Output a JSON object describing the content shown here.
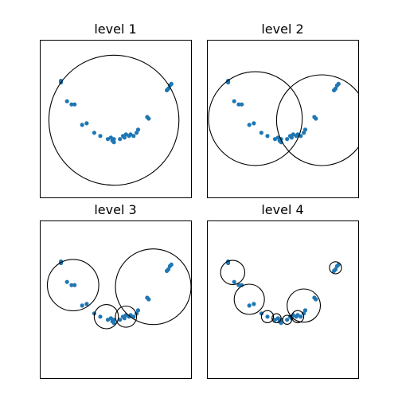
{
  "chart_data": [
    {
      "type": "scatter",
      "title": "level 1",
      "xlim": [
        0,
        100
      ],
      "ylim": [
        0,
        100
      ],
      "grid": false,
      "points": [
        [
          14,
          73
        ],
        [
          14,
          74
        ],
        [
          18,
          61
        ],
        [
          21,
          59
        ],
        [
          23,
          59
        ],
        [
          28,
          46
        ],
        [
          31,
          47
        ],
        [
          36,
          41
        ],
        [
          40,
          39
        ],
        [
          45,
          37
        ],
        [
          47,
          38
        ],
        [
          48,
          36
        ],
        [
          49,
          37
        ],
        [
          49,
          35
        ],
        [
          53,
          37
        ],
        [
          55,
          39
        ],
        [
          56,
          38
        ],
        [
          57,
          40
        ],
        [
          59,
          39
        ],
        [
          60,
          40
        ],
        [
          62,
          39
        ],
        [
          64,
          41
        ],
        [
          65,
          43
        ],
        [
          71,
          51
        ],
        [
          72,
          50
        ],
        [
          84,
          68
        ],
        [
          85,
          69
        ],
        [
          86,
          71
        ],
        [
          87,
          72
        ]
      ],
      "circles": [
        {
          "cx": 49,
          "cy": 49,
          "r": 43
        }
      ]
    },
    {
      "type": "scatter",
      "title": "level 2",
      "xlim": [
        0,
        100
      ],
      "ylim": [
        0,
        100
      ],
      "grid": false,
      "points": [
        [
          14,
          73
        ],
        [
          14,
          74
        ],
        [
          18,
          61
        ],
        [
          21,
          59
        ],
        [
          23,
          59
        ],
        [
          28,
          46
        ],
        [
          31,
          47
        ],
        [
          36,
          41
        ],
        [
          40,
          39
        ],
        [
          45,
          37
        ],
        [
          47,
          38
        ],
        [
          48,
          36
        ],
        [
          49,
          37
        ],
        [
          49,
          35
        ],
        [
          53,
          37
        ],
        [
          55,
          39
        ],
        [
          56,
          38
        ],
        [
          57,
          40
        ],
        [
          59,
          39
        ],
        [
          60,
          40
        ],
        [
          62,
          39
        ],
        [
          64,
          41
        ],
        [
          65,
          43
        ],
        [
          71,
          51
        ],
        [
          72,
          50
        ],
        [
          84,
          68
        ],
        [
          85,
          69
        ],
        [
          86,
          71
        ],
        [
          87,
          72
        ]
      ],
      "circles": [
        {
          "cx": 32,
          "cy": 50,
          "r": 31
        },
        {
          "cx": 76,
          "cy": 49,
          "r": 30
        }
      ]
    },
    {
      "type": "scatter",
      "title": "level 3",
      "xlim": [
        0,
        100
      ],
      "ylim": [
        0,
        100
      ],
      "grid": false,
      "points": [
        [
          14,
          73
        ],
        [
          14,
          74
        ],
        [
          18,
          61
        ],
        [
          21,
          59
        ],
        [
          23,
          59
        ],
        [
          28,
          46
        ],
        [
          31,
          47
        ],
        [
          36,
          41
        ],
        [
          40,
          39
        ],
        [
          45,
          37
        ],
        [
          47,
          38
        ],
        [
          48,
          36
        ],
        [
          49,
          37
        ],
        [
          49,
          35
        ],
        [
          53,
          37
        ],
        [
          55,
          39
        ],
        [
          56,
          38
        ],
        [
          57,
          40
        ],
        [
          59,
          39
        ],
        [
          60,
          40
        ],
        [
          62,
          39
        ],
        [
          64,
          41
        ],
        [
          65,
          43
        ],
        [
          71,
          51
        ],
        [
          72,
          50
        ],
        [
          84,
          68
        ],
        [
          85,
          69
        ],
        [
          86,
          71
        ],
        [
          87,
          72
        ]
      ],
      "circles": [
        {
          "cx": 22,
          "cy": 59,
          "r": 17
        },
        {
          "cx": 44,
          "cy": 39,
          "r": 8
        },
        {
          "cx": 57,
          "cy": 39,
          "r": 7
        },
        {
          "cx": 75,
          "cy": 58,
          "r": 25
        }
      ]
    },
    {
      "type": "scatter",
      "title": "level 4",
      "xlim": [
        0,
        100
      ],
      "ylim": [
        0,
        100
      ],
      "grid": false,
      "points": [
        [
          14,
          73
        ],
        [
          14,
          74
        ],
        [
          18,
          61
        ],
        [
          21,
          59
        ],
        [
          23,
          59
        ],
        [
          28,
          46
        ],
        [
          31,
          47
        ],
        [
          36,
          41
        ],
        [
          40,
          39
        ],
        [
          45,
          37
        ],
        [
          47,
          38
        ],
        [
          48,
          36
        ],
        [
          49,
          37
        ],
        [
          49,
          35
        ],
        [
          53,
          37
        ],
        [
          55,
          39
        ],
        [
          56,
          38
        ],
        [
          57,
          40
        ],
        [
          59,
          39
        ],
        [
          60,
          40
        ],
        [
          62,
          39
        ],
        [
          64,
          41
        ],
        [
          65,
          43
        ],
        [
          71,
          51
        ],
        [
          72,
          50
        ],
        [
          84,
          68
        ],
        [
          85,
          69
        ],
        [
          86,
          71
        ],
        [
          87,
          72
        ]
      ],
      "circles": [
        {
          "cx": 17,
          "cy": 67,
          "r": 8
        },
        {
          "cx": 28,
          "cy": 50,
          "r": 10
        },
        {
          "cx": 40,
          "cy": 39,
          "r": 4
        },
        {
          "cx": 46,
          "cy": 38,
          "r": 3
        },
        {
          "cx": 53,
          "cy": 37,
          "r": 3
        },
        {
          "cx": 60,
          "cy": 39,
          "r": 4
        },
        {
          "cx": 64,
          "cy": 46,
          "r": 11
        },
        {
          "cx": 85,
          "cy": 70,
          "r": 4
        }
      ]
    }
  ],
  "colors": {
    "points": "#1f77b4",
    "circles": "#000000"
  }
}
